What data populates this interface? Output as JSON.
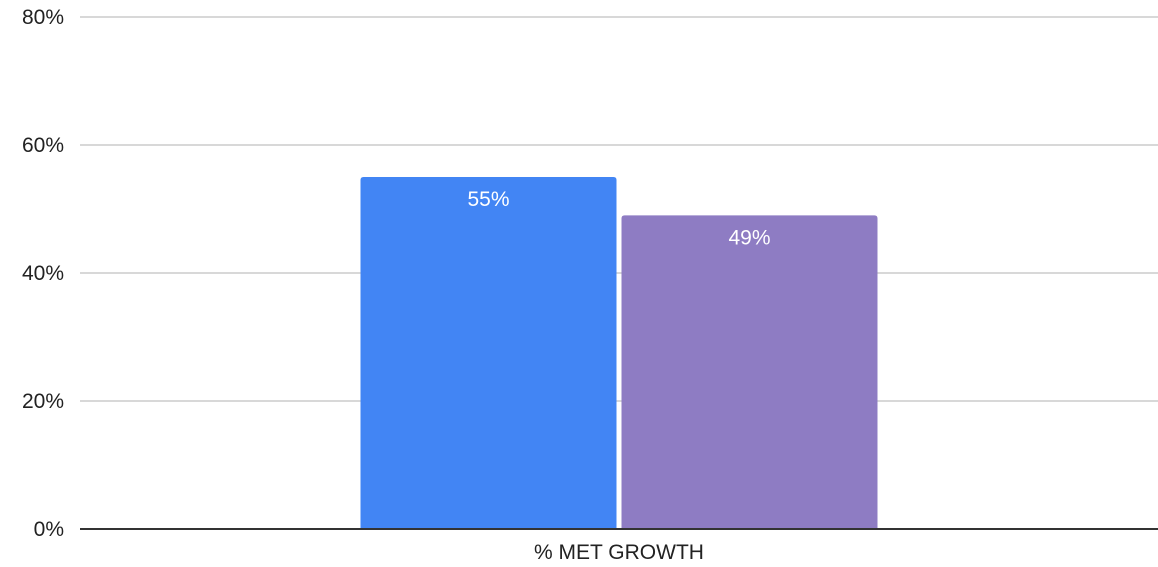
{
  "chart_data": {
    "type": "bar",
    "categories": [
      "% MET GROWTH"
    ],
    "series": [
      {
        "values": [
          55
        ],
        "color": "#4285f4",
        "value_labels": [
          "55%"
        ]
      },
      {
        "values": [
          49
        ],
        "color": "#8e7cc3",
        "value_labels": [
          "49%"
        ]
      }
    ],
    "ylim": [
      0,
      80
    ],
    "yticks": [
      0,
      20,
      40,
      60,
      80
    ],
    "ytick_labels": [
      "0%",
      "20%",
      "40%",
      "60%",
      "80%"
    ],
    "title": "",
    "xlabel": "",
    "ylabel": "",
    "grid": true,
    "legend": "none",
    "colors": {
      "grid": "#cccccc",
      "axis": "#333333",
      "text": "#222222",
      "data_label": "#ffffff"
    }
  }
}
